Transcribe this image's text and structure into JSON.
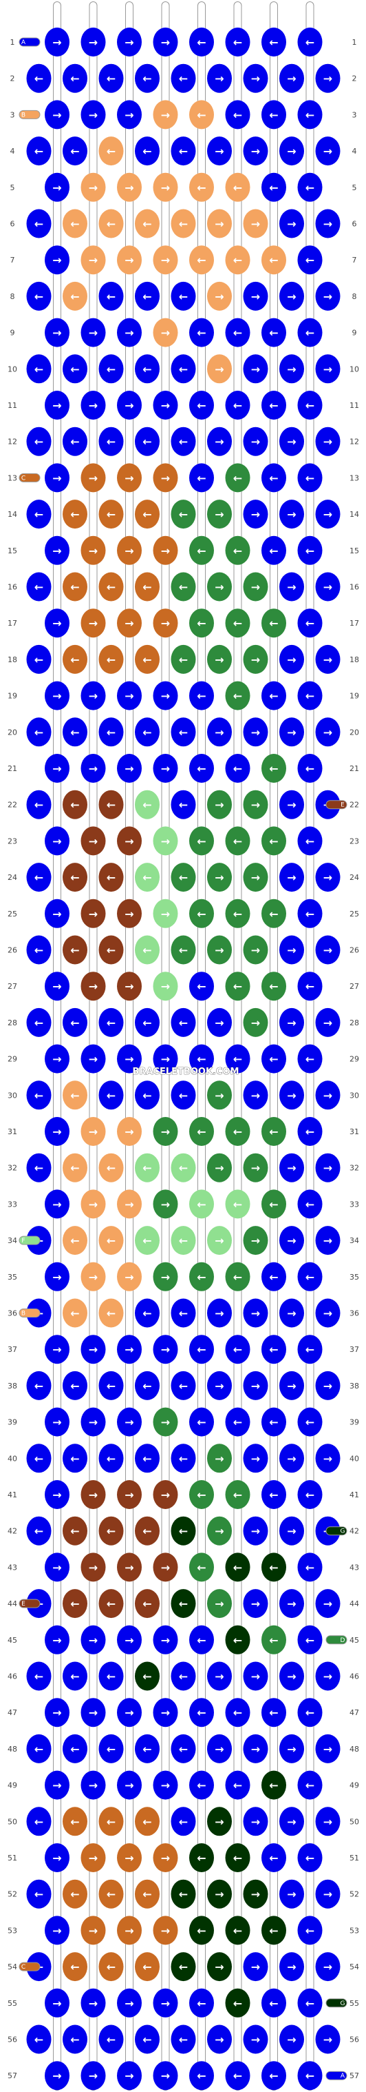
{
  "watermark": "BRACELETBOOK.COM",
  "rows": [
    "1",
    "2",
    "3",
    "4",
    "5",
    "6",
    "7",
    "8",
    "9",
    "10",
    "11",
    "12",
    "13",
    "14",
    "15",
    "16",
    "17",
    "18",
    "19",
    "20",
    "21",
    "22",
    "23",
    "24",
    "25",
    "26",
    "27",
    "28",
    "29",
    "30",
    "31",
    "32",
    "33",
    "34",
    "35",
    "36",
    "37",
    "38",
    "39",
    "40",
    "41",
    "42",
    "43",
    "44",
    "45",
    "46",
    "47",
    "48",
    "49",
    "50",
    "51",
    "52",
    "53",
    "54",
    "55",
    "56",
    "57"
  ],
  "strands": [
    {
      "letter": "A",
      "color": "#0000ee"
    },
    {
      "letter": "B",
      "color": "#f4a460"
    },
    {
      "letter": "C",
      "color": "#c96a22"
    },
    {
      "letter": "D",
      "color": "#2e8b3c"
    },
    {
      "letter": "E",
      "color": "#8b3a1a"
    },
    {
      "letter": "F",
      "color": "#90e090"
    },
    {
      "letter": "G",
      "color": "#003300"
    }
  ],
  "colors": {
    "background": "#0000ee",
    "string_outline": "#999999"
  },
  "left_tags": [
    {
      "row": 1,
      "letter": "A"
    },
    {
      "row": 3,
      "letter": "B"
    },
    {
      "row": 13,
      "letter": "C"
    },
    {
      "row": 34,
      "letter": "F"
    },
    {
      "row": 36,
      "letter": "B"
    },
    {
      "row": 44,
      "letter": "E"
    },
    {
      "row": 54,
      "letter": "C"
    }
  ],
  "right_tags": [
    {
      "row": 22,
      "letter": "E"
    },
    {
      "row": 42,
      "letter": "G"
    },
    {
      "row": 45,
      "letter": "D"
    },
    {
      "row": 55,
      "letter": "G"
    },
    {
      "row": 57,
      "letter": "A"
    }
  ],
  "knots": {
    "3": {
      "4": "B",
      "5": "B"
    },
    "4": {
      "3": "B"
    },
    "5": {
      "2": "B",
      "3": "B",
      "4": "B",
      "5": "B",
      "6": "B"
    },
    "6": {
      "2": "B",
      "3": "B",
      "4": "B",
      "5": "B",
      "6": "B",
      "7": "B"
    },
    "7": {
      "2": "B",
      "3": "B",
      "4": "B",
      "5": "B",
      "6": "B",
      "7": "B"
    },
    "8": {
      "2": "B",
      "6": "B"
    },
    "9": {
      "4": "B"
    },
    "10": {
      "6": "B"
    },
    "13": {
      "2": "C",
      "3": "C",
      "4": "C",
      "6": "D"
    },
    "14": {
      "2": "C",
      "3": "C",
      "4": "C",
      "5": "D",
      "6": "D"
    },
    "15": {
      "2": "C",
      "3": "C",
      "4": "C",
      "5": "D",
      "6": "D"
    },
    "16": {
      "2": "C",
      "3": "C",
      "4": "C",
      "5": "D",
      "6": "D",
      "7": "D"
    },
    "17": {
      "2": "C",
      "3": "C",
      "4": "C",
      "5": "D",
      "6": "D",
      "7": "D"
    },
    "18": {
      "2": "C",
      "3": "C",
      "4": "C",
      "5": "D",
      "6": "D",
      "7": "D"
    },
    "19": {
      "6": "D"
    },
    "21": {
      "7": "D"
    },
    "22": {
      "2": "E",
      "3": "E",
      "4": "F",
      "6": "D",
      "7": "D"
    },
    "23": {
      "2": "E",
      "3": "E",
      "4": "F",
      "5": "D",
      "6": "D",
      "7": "D"
    },
    "24": {
      "2": "E",
      "3": "E",
      "4": "F",
      "5": "D",
      "6": "D",
      "7": "D"
    },
    "25": {
      "2": "E",
      "3": "E",
      "4": "F",
      "5": "D",
      "6": "D",
      "7": "D"
    },
    "26": {
      "2": "E",
      "3": "E",
      "4": "F",
      "5": "D",
      "6": "D",
      "7": "D"
    },
    "27": {
      "2": "E",
      "3": "E",
      "4": "F",
      "6": "D",
      "7": "D"
    },
    "28": {
      "7": "D"
    },
    "30": {
      "2": "B",
      "6": "D"
    },
    "31": {
      "2": "B",
      "3": "B",
      "4": "D",
      "5": "D",
      "6": "D",
      "7": "D"
    },
    "32": {
      "2": "B",
      "3": "B",
      "4": "F",
      "5": "F",
      "6": "D",
      "7": "D"
    },
    "33": {
      "2": "B",
      "3": "B",
      "4": "D",
      "5": "F",
      "6": "F",
      "7": "D"
    },
    "34": {
      "2": "B",
      "3": "B",
      "4": "F",
      "5": "F",
      "6": "F",
      "7": "D"
    },
    "35": {
      "2": "B",
      "3": "B",
      "4": "D",
      "5": "D",
      "6": "D"
    },
    "36": {
      "2": "B",
      "3": "B"
    },
    "39": {
      "4": "D"
    },
    "40": {
      "6": "D"
    },
    "41": {
      "2": "E",
      "3": "E",
      "4": "E",
      "5": "D",
      "6": "D"
    },
    "42": {
      "2": "E",
      "3": "E",
      "4": "E",
      "5": "G",
      "6": "D"
    },
    "43": {
      "2": "E",
      "3": "E",
      "4": "E",
      "5": "D",
      "6": "G",
      "7": "G"
    },
    "44": {
      "2": "E",
      "3": "E",
      "4": "E",
      "5": "G",
      "6": "D"
    },
    "45": {
      "6": "G",
      "7": "D"
    },
    "46": {
      "4": "G"
    },
    "49": {
      "7": "G"
    },
    "50": {
      "2": "C",
      "3": "C",
      "4": "C",
      "6": "G"
    },
    "51": {
      "2": "C",
      "3": "C",
      "4": "C",
      "5": "G",
      "6": "G"
    },
    "52": {
      "2": "C",
      "3": "C",
      "4": "C",
      "5": "G",
      "6": "G",
      "7": "G"
    },
    "53": {
      "2": "C",
      "3": "C",
      "4": "C",
      "5": "G",
      "6": "G",
      "7": "G"
    },
    "54": {
      "2": "C",
      "3": "C",
      "4": "C",
      "5": "G",
      "6": "G"
    },
    "55": {
      "6": "G"
    }
  }
}
